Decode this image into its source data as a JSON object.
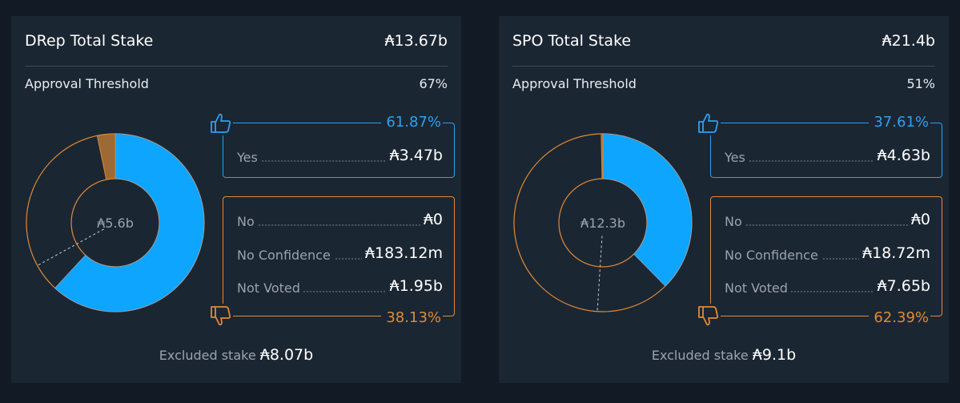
{
  "colors": {
    "yes": "#0ea5ff",
    "no": "#e08a35",
    "no_confidence": "#9b6a35",
    "background": "#121b25",
    "card": "#1b2633"
  },
  "cards": [
    {
      "id": "drep",
      "title": "DRep Total Stake",
      "total": "₳13.67b",
      "threshold_label": "Approval Threshold",
      "threshold_value": "67%",
      "threshold_fraction": 0.67,
      "center_label": "₳5.6b",
      "yes_percent": "61.87%",
      "yes_fraction": 0.6187,
      "no_percent": "38.13%",
      "no_confidence_fraction": 0.0327,
      "yes": {
        "label": "Yes",
        "value": "₳3.47b"
      },
      "no_rows": [
        {
          "label": "No",
          "value": "₳0"
        },
        {
          "label": "No Confidence",
          "value": "₳183.12m"
        },
        {
          "label": "Not Voted",
          "value": "₳1.95b"
        }
      ],
      "excluded_label": "Excluded stake",
      "excluded_value": "₳8.07b"
    },
    {
      "id": "spo",
      "title": "SPO Total Stake",
      "total": "₳21.4b",
      "threshold_label": "Approval Threshold",
      "threshold_value": "51%",
      "threshold_fraction": 0.51,
      "center_label": "₳12.3b",
      "yes_percent": "37.61%",
      "yes_fraction": 0.3761,
      "no_percent": "62.39%",
      "no_confidence_fraction": 0.0015,
      "yes": {
        "label": "Yes",
        "value": "₳4.63b"
      },
      "no_rows": [
        {
          "label": "No",
          "value": "₳0"
        },
        {
          "label": "No Confidence",
          "value": "₳18.72m"
        },
        {
          "label": "Not Voted",
          "value": "₳7.65b"
        }
      ],
      "excluded_label": "Excluded stake",
      "excluded_value": "₳9.1b"
    }
  ]
}
